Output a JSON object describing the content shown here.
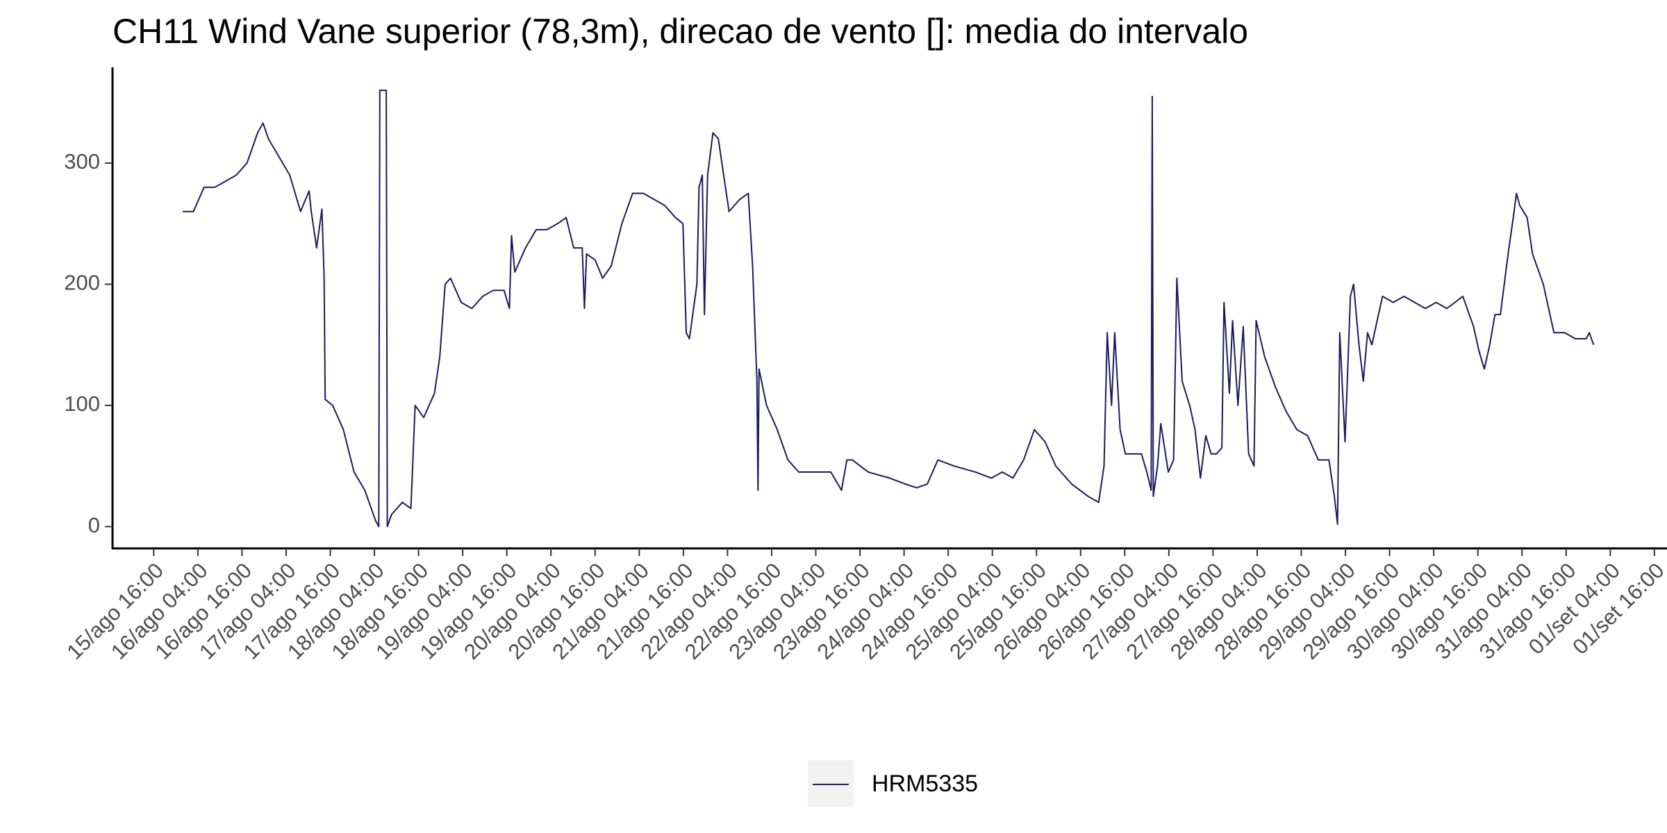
{
  "chart_data": {
    "type": "line",
    "title": "CH11 Wind Vane superior (78,3m), direcao de vento []: media do intervalo",
    "xlim": [
      15.2,
      32.77
    ],
    "ylim": [
      -18,
      379
    ],
    "yticks": [
      0,
      100,
      200,
      300
    ],
    "xticks": [
      {
        "value": 15.6667,
        "label": "15/ago 16:00"
      },
      {
        "value": 16.1667,
        "label": "16/ago 04:00"
      },
      {
        "value": 16.6667,
        "label": "16/ago 16:00"
      },
      {
        "value": 17.1667,
        "label": "17/ago 04:00"
      },
      {
        "value": 17.6667,
        "label": "17/ago 16:00"
      },
      {
        "value": 18.1667,
        "label": "18/ago 04:00"
      },
      {
        "value": 18.6667,
        "label": "18/ago 16:00"
      },
      {
        "value": 19.1667,
        "label": "19/ago 04:00"
      },
      {
        "value": 19.6667,
        "label": "19/ago 16:00"
      },
      {
        "value": 20.1667,
        "label": "20/ago 04:00"
      },
      {
        "value": 20.6667,
        "label": "20/ago 16:00"
      },
      {
        "value": 21.1667,
        "label": "21/ago 04:00"
      },
      {
        "value": 21.6667,
        "label": "21/ago 16:00"
      },
      {
        "value": 22.1667,
        "label": "22/ago 04:00"
      },
      {
        "value": 22.6667,
        "label": "22/ago 16:00"
      },
      {
        "value": 23.1667,
        "label": "23/ago 04:00"
      },
      {
        "value": 23.6667,
        "label": "23/ago 16:00"
      },
      {
        "value": 24.1667,
        "label": "24/ago 04:00"
      },
      {
        "value": 24.6667,
        "label": "24/ago 16:00"
      },
      {
        "value": 25.1667,
        "label": "25/ago 04:00"
      },
      {
        "value": 25.6667,
        "label": "25/ago 16:00"
      },
      {
        "value": 26.1667,
        "label": "26/ago 04:00"
      },
      {
        "value": 26.6667,
        "label": "26/ago 16:00"
      },
      {
        "value": 27.1667,
        "label": "27/ago 04:00"
      },
      {
        "value": 27.6667,
        "label": "27/ago 16:00"
      },
      {
        "value": 28.1667,
        "label": "28/ago 04:00"
      },
      {
        "value": 28.6667,
        "label": "28/ago 16:00"
      },
      {
        "value": 29.1667,
        "label": "29/ago 04:00"
      },
      {
        "value": 29.6667,
        "label": "29/ago 16:00"
      },
      {
        "value": 30.1667,
        "label": "30/ago 04:00"
      },
      {
        "value": 30.6667,
        "label": "30/ago 16:00"
      },
      {
        "value": 31.1667,
        "label": "31/ago 04:00"
      },
      {
        "value": 31.6667,
        "label": "31/ago 16:00"
      },
      {
        "value": 32.1667,
        "label": "01/set 04:00"
      },
      {
        "value": 32.6667,
        "label": "01/set 16:00"
      }
    ],
    "series": [
      {
        "name": "HRM5335",
        "color": "#1a1a5e",
        "x": [
          15.995,
          16.116,
          16.237,
          16.359,
          16.48,
          16.601,
          16.723,
          16.844,
          16.905,
          16.966,
          17.087,
          17.208,
          17.33,
          17.427,
          17.451,
          17.512,
          17.572,
          17.597,
          17.609,
          17.694,
          17.815,
          17.936,
          18.058,
          18.179,
          18.216,
          18.228,
          18.264,
          18.301,
          18.313,
          18.361,
          18.483,
          18.58,
          18.628,
          18.725,
          18.847,
          18.907,
          18.968,
          19.029,
          19.15,
          19.271,
          19.393,
          19.514,
          19.635,
          19.696,
          19.72,
          19.757,
          19.878,
          20.0,
          20.121,
          20.242,
          20.339,
          20.424,
          20.521,
          20.546,
          20.57,
          20.667,
          20.752,
          20.849,
          20.97,
          21.092,
          21.213,
          21.334,
          21.456,
          21.577,
          21.662,
          21.699,
          21.735,
          21.82,
          21.844,
          21.881,
          21.905,
          21.941,
          22.002,
          22.063,
          22.123,
          22.184,
          22.305,
          22.402,
          22.451,
          22.5,
          22.512,
          22.524,
          22.609,
          22.73,
          22.851,
          22.973,
          23.094,
          23.216,
          23.337,
          23.458,
          23.519,
          23.58,
          23.762,
          24.004,
          24.186,
          24.308,
          24.429,
          24.55,
          24.733,
          24.975,
          25.157,
          25.279,
          25.4,
          25.521,
          25.643,
          25.764,
          25.885,
          26.067,
          26.25,
          26.371,
          26.432,
          26.468,
          26.517,
          26.553,
          26.614,
          26.674,
          26.796,
          26.856,
          26.917,
          26.966,
          26.978,
          26.99,
          27.038,
          27.075,
          27.16,
          27.22,
          27.257,
          27.317,
          27.402,
          27.463,
          27.524,
          27.585,
          27.645,
          27.706,
          27.767,
          27.791,
          27.852,
          27.888,
          27.949,
          28.009,
          28.07,
          28.131,
          28.155,
          28.252,
          28.374,
          28.495,
          28.616,
          28.738,
          28.859,
          28.98,
          29.041,
          29.077,
          29.102,
          29.162,
          29.223,
          29.259,
          29.32,
          29.369,
          29.417,
          29.466,
          29.526,
          29.587,
          29.708,
          29.83,
          29.951,
          30.072,
          30.194,
          30.315,
          30.497,
          30.618,
          30.679,
          30.74,
          30.801,
          30.861,
          30.922,
          30.983,
          31.019,
          31.068,
          31.104,
          31.141,
          31.225,
          31.286,
          31.408,
          31.468,
          31.529,
          31.65,
          31.771,
          31.893,
          31.929,
          31.978
        ],
        "values": [
          260,
          260,
          280,
          280,
          285,
          290,
          300,
          325,
          333,
          320,
          305,
          290,
          260,
          277,
          260,
          230,
          262,
          205,
          105,
          100,
          80,
          45,
          30,
          5,
          0,
          360,
          360,
          360,
          0,
          10,
          20,
          15,
          100,
          90,
          110,
          140,
          200,
          205,
          185,
          180,
          190,
          195,
          195,
          180,
          240,
          210,
          230,
          245,
          245,
          250,
          255,
          230,
          230,
          180,
          225,
          220,
          205,
          215,
          250,
          275,
          275,
          270,
          265,
          255,
          250,
          160,
          155,
          200,
          280,
          290,
          175,
          290,
          325,
          320,
          290,
          260,
          270,
          275,
          215,
          120,
          30,
          130,
          100,
          80,
          55,
          45,
          45,
          45,
          45,
          30,
          55,
          55,
          45,
          40,
          35,
          32,
          35,
          55,
          50,
          45,
          40,
          45,
          40,
          55,
          80,
          70,
          50,
          35,
          25,
          20,
          50,
          160,
          100,
          160,
          80,
          60,
          60,
          60,
          45,
          30,
          355,
          25,
          50,
          85,
          45,
          55,
          205,
          120,
          100,
          80,
          40,
          75,
          60,
          60,
          65,
          185,
          110,
          170,
          100,
          165,
          60,
          50,
          170,
          140,
          115,
          95,
          80,
          75,
          55,
          55,
          25,
          2,
          160,
          70,
          190,
          200,
          150,
          120,
          160,
          150,
          170,
          190,
          185,
          190,
          185,
          180,
          185,
          180,
          190,
          165,
          145,
          130,
          150,
          175,
          175,
          210,
          230,
          255,
          275,
          265,
          255,
          225,
          200,
          180,
          160,
          160,
          155,
          155,
          160,
          150
        ]
      }
    ]
  }
}
